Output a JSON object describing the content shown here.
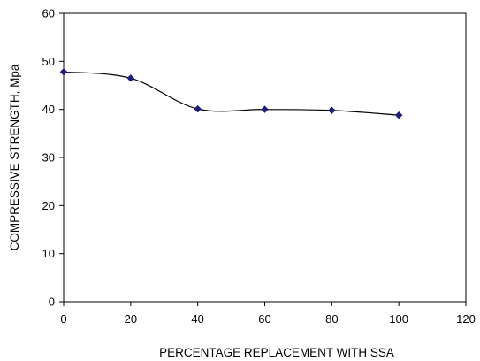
{
  "chart_data": {
    "type": "line",
    "title": "",
    "xlabel": "PERCENTAGE REPLACEMENT WITH SSA",
    "ylabel": "COMPRESSIVE STRENGTH, Mpa",
    "xlim": [
      0,
      120
    ],
    "ylim": [
      0,
      60
    ],
    "x_ticks": [
      0,
      20,
      40,
      60,
      80,
      100,
      120
    ],
    "y_ticks": [
      0,
      10,
      20,
      30,
      40,
      50,
      60
    ],
    "smooth": true,
    "grid": false,
    "legend": "none",
    "series": [
      {
        "x": [
          0,
          20,
          40,
          60,
          80,
          100
        ],
        "values": [
          47.8,
          46.5,
          40.1,
          40.0,
          39.8,
          38.8
        ],
        "color": "#000000",
        "marker": "diamond",
        "marker_color": "#1f1f7a"
      }
    ]
  }
}
